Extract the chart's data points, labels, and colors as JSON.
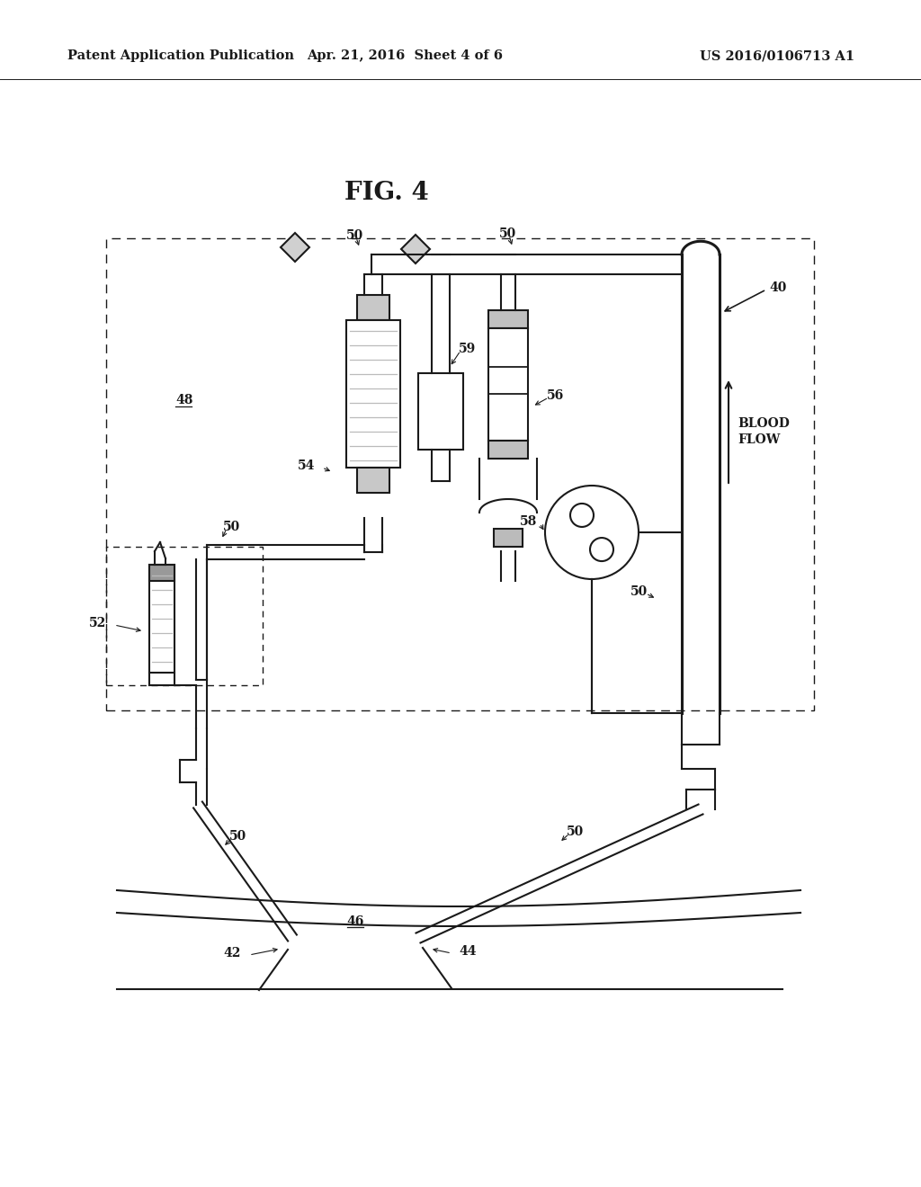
{
  "bg_color": "#ffffff",
  "line_color": "#1a1a1a",
  "header_left": "Patent Application Publication",
  "header_center": "Apr. 21, 2016  Sheet 4 of 6",
  "header_right": "US 2016/0106713 A1",
  "fig_label": "FIG. 4",
  "figsize": [
    10.24,
    13.2
  ],
  "dpi": 100,
  "lw_tube": 2.2,
  "lw_main": 1.5,
  "lw_thin": 1.2,
  "lw_dashed": 1.0
}
